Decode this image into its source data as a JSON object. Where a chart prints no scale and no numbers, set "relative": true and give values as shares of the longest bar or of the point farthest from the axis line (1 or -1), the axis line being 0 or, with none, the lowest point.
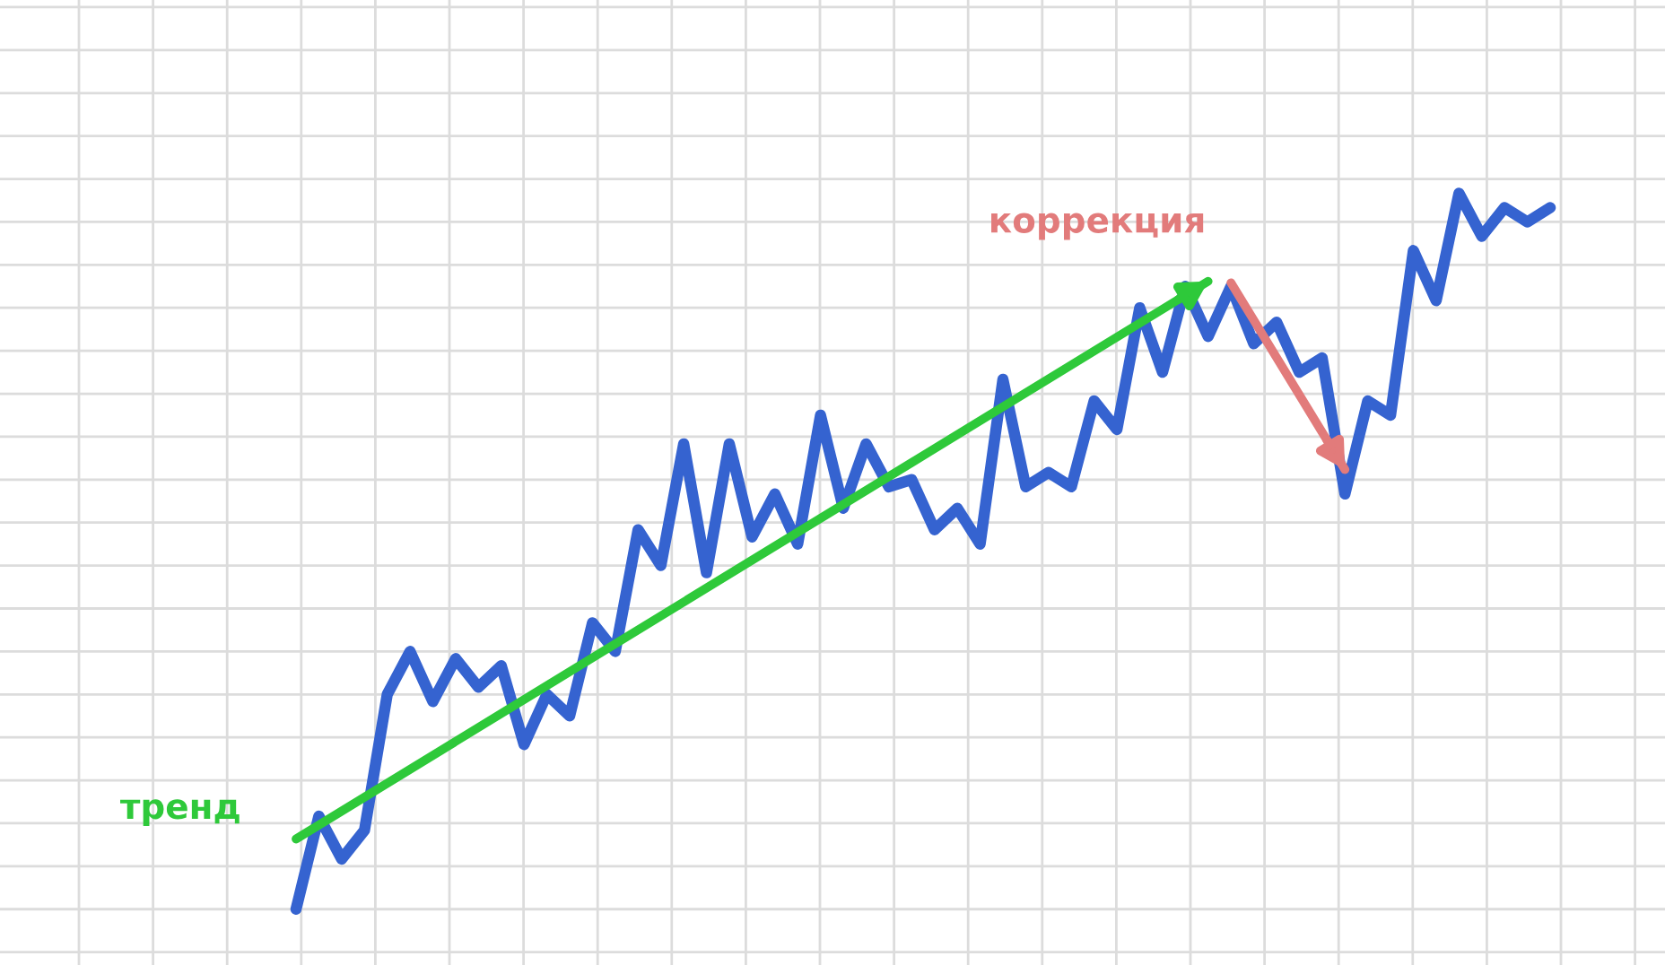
{
  "chart_data": {
    "type": "line",
    "relative": true,
    "grid": true,
    "tick_labels": false,
    "legend": false,
    "line_style": "solid",
    "marker": "none",
    "categories": [
      null,
      null,
      null,
      null,
      null,
      null,
      null,
      null,
      null,
      null,
      null,
      null,
      null,
      null,
      null,
      null,
      null,
      null,
      null,
      null,
      null,
      null,
      null,
      null,
      null,
      null,
      null,
      null,
      null,
      null,
      null,
      null,
      null,
      null,
      null,
      null,
      null,
      null,
      null,
      null,
      null,
      null,
      null,
      null,
      null,
      null,
      null,
      null,
      null,
      null,
      null,
      null,
      null,
      null,
      null,
      null
    ],
    "series": [
      {
        "color": "#3563d0",
        "values": [
          0,
          0.13,
          0.07,
          0.11,
          0.3,
          0.36,
          0.29,
          0.35,
          0.31,
          0.34,
          0.23,
          0.3,
          0.27,
          0.4,
          0.36,
          0.53,
          0.48,
          0.65,
          0.47,
          0.65,
          0.52,
          0.58,
          0.51,
          0.69,
          0.56,
          0.65,
          0.59,
          0.6,
          0.53,
          0.56,
          0.51,
          0.74,
          0.59,
          0.61,
          0.59,
          0.71,
          0.67,
          0.84,
          0.75,
          0.87,
          0.8,
          0.87,
          0.79,
          0.82,
          0.75,
          0.77,
          0.58,
          0.71,
          0.69,
          0.92,
          0.85,
          1,
          0.94,
          0.98,
          0.96,
          0.98
        ]
      },
      {
        "type": "line",
        "name": "тренд",
        "color": "#2ec93a",
        "values": [
          0.098,
          null,
          null,
          null,
          null,
          null,
          null,
          null,
          null,
          null,
          null,
          null,
          null,
          null,
          null,
          null,
          null,
          null,
          null,
          null,
          null,
          null,
          null,
          null,
          null,
          null,
          null,
          null,
          null,
          null,
          null,
          null,
          null,
          null,
          null,
          null,
          null,
          null,
          null,
          null,
          0.877,
          null,
          null,
          null,
          null,
          null,
          null,
          null,
          null,
          null,
          null,
          null,
          null,
          null,
          null,
          null
        ]
      },
      {
        "type": "line",
        "name": "коррекция",
        "color": "#e27b7b",
        "values": [
          null,
          null,
          null,
          null,
          null,
          null,
          null,
          null,
          null,
          null,
          null,
          null,
          null,
          null,
          null,
          null,
          null,
          null,
          null,
          null,
          null,
          null,
          null,
          null,
          null,
          null,
          null,
          null,
          null,
          null,
          null,
          null,
          null,
          null,
          null,
          null,
          null,
          null,
          null,
          null,
          null,
          0.875,
          null,
          null,
          null,
          null,
          0.614,
          null,
          null,
          null,
          null,
          null,
          null,
          null,
          null,
          null
        ]
      }
    ]
  }
}
